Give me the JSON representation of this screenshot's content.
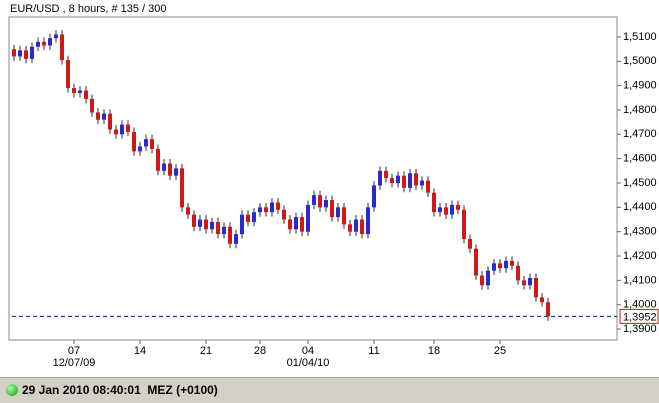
{
  "chart_data": {
    "type": "candlestick",
    "title": "EUR/USD , 8 hours, # 135 / 300",
    "categories": [
      null,
      null,
      null,
      null,
      null,
      null,
      null,
      null,
      null,
      null,
      "07",
      null,
      null,
      null,
      null,
      null,
      null,
      null,
      null,
      null,
      null,
      "14",
      null,
      null,
      null,
      null,
      null,
      null,
      null,
      null,
      null,
      null,
      "21",
      null,
      null,
      null,
      null,
      null,
      null,
      null,
      null,
      "28",
      null,
      null,
      null,
      null,
      null,
      null,
      null,
      "04",
      null,
      null,
      null,
      null,
      null,
      null,
      null,
      null,
      null,
      null,
      "11",
      null,
      null,
      null,
      null,
      null,
      null,
      null,
      null,
      null,
      "18",
      null,
      null,
      null,
      null,
      null,
      null,
      null,
      null,
      null,
      null,
      "25",
      null,
      null,
      null,
      null,
      null,
      null,
      null,
      null
    ],
    "categories2": [
      null,
      null,
      null,
      null,
      null,
      null,
      null,
      null,
      null,
      null,
      "12/07/09",
      null,
      null,
      null,
      null,
      null,
      null,
      null,
      null,
      null,
      null,
      null,
      null,
      null,
      null,
      null,
      null,
      null,
      null,
      null,
      null,
      null,
      null,
      null,
      null,
      null,
      null,
      null,
      null,
      null,
      null,
      null,
      null,
      null,
      null,
      null,
      null,
      null,
      null,
      "01/04/10",
      null,
      null,
      null,
      null,
      null,
      null,
      null,
      null,
      null,
      null,
      null,
      null,
      null,
      null,
      null,
      null,
      null,
      null,
      null,
      null,
      null,
      null,
      null,
      null,
      null,
      null,
      null,
      null,
      null,
      null,
      null,
      null,
      null,
      null,
      null,
      null,
      null,
      null,
      null,
      null
    ],
    "open": [
      1.505,
      1.502,
      1.5045,
      1.501,
      1.506,
      1.508,
      1.5065,
      1.5095,
      1.511,
      1.5005,
      1.489,
      1.487,
      1.488,
      1.4845,
      1.479,
      1.476,
      1.4785,
      1.472,
      1.47,
      1.474,
      1.471,
      1.463,
      1.465,
      1.468,
      1.464,
      1.455,
      1.458,
      1.453,
      1.456,
      1.44,
      1.437,
      1.432,
      1.435,
      1.431,
      1.434,
      1.429,
      1.432,
      1.425,
      1.429,
      1.437,
      1.434,
      1.438,
      1.44,
      1.438,
      1.442,
      1.439,
      1.435,
      1.431,
      1.436,
      1.43,
      1.441,
      1.445,
      1.44,
      1.443,
      1.436,
      1.44,
      1.433,
      1.43,
      1.435,
      1.429,
      1.44,
      1.449,
      1.455,
      1.452,
      1.45,
      1.453,
      1.448,
      1.454,
      1.449,
      1.451,
      1.446,
      1.438,
      1.44,
      1.437,
      1.441,
      1.439,
      1.427,
      1.423,
      1.412,
      1.408,
      1.414,
      1.417,
      1.415,
      1.418,
      1.416,
      1.41,
      1.408,
      1.411,
      1.403,
      1.401
    ],
    "high": [
      1.5068,
      1.5063,
      1.5063,
      1.5078,
      1.5098,
      1.5098,
      1.5113,
      1.5128,
      1.5128,
      1.5023,
      1.4908,
      1.4898,
      1.4898,
      1.4863,
      1.4808,
      1.4803,
      1.4803,
      1.4738,
      1.4758,
      1.4758,
      1.4728,
      1.4668,
      1.4698,
      1.4698,
      1.4658,
      1.4598,
      1.4598,
      1.4578,
      1.4578,
      1.4418,
      1.4388,
      1.4368,
      1.4368,
      1.4358,
      1.4358,
      1.4338,
      1.4338,
      1.4308,
      1.4388,
      1.4388,
      1.4398,
      1.4418,
      1.4418,
      1.4438,
      1.4438,
      1.4408,
      1.4368,
      1.4378,
      1.4378,
      1.4428,
      1.4468,
      1.4468,
      1.4448,
      1.4448,
      1.4418,
      1.4418,
      1.4348,
      1.4368,
      1.4368,
      1.4418,
      1.4508,
      1.4568,
      1.4568,
      1.4538,
      1.4548,
      1.4548,
      1.4558,
      1.4558,
      1.4528,
      1.4528,
      1.4478,
      1.4418,
      1.4418,
      1.4428,
      1.4428,
      1.4408,
      1.4288,
      1.4248,
      1.4138,
      1.4158,
      1.4188,
      1.4188,
      1.4198,
      1.4198,
      1.4178,
      1.4118,
      1.4128,
      1.4128,
      1.4048,
      1.4028
    ],
    "low": [
      1.5002,
      1.5002,
      1.4992,
      1.4992,
      1.5042,
      1.5047,
      1.5047,
      1.5077,
      1.4987,
      1.4872,
      1.4852,
      1.4852,
      1.4827,
      1.4772,
      1.4742,
      1.4742,
      1.4702,
      1.4682,
      1.4682,
      1.4692,
      1.4612,
      1.4612,
      1.4632,
      1.4622,
      1.4532,
      1.4532,
      1.4512,
      1.4512,
      1.4382,
      1.4352,
      1.4302,
      1.4302,
      1.4292,
      1.4292,
      1.4272,
      1.4272,
      1.4232,
      1.4232,
      1.4272,
      1.4322,
      1.4322,
      1.4362,
      1.4362,
      1.4362,
      1.4372,
      1.4332,
      1.4292,
      1.4292,
      1.4282,
      1.4282,
      1.4392,
      1.4382,
      1.4382,
      1.4342,
      1.4342,
      1.4312,
      1.4282,
      1.4282,
      1.4272,
      1.4272,
      1.4382,
      1.4472,
      1.4502,
      1.4482,
      1.4482,
      1.4462,
      1.4462,
      1.4472,
      1.4472,
      1.4442,
      1.4362,
      1.4362,
      1.4352,
      1.4352,
      1.4372,
      1.4252,
      1.4212,
      1.4102,
      1.4062,
      1.4062,
      1.4122,
      1.4132,
      1.4132,
      1.4142,
      1.4082,
      1.4062,
      1.4062,
      1.4012,
      1.3992,
      1.3934
    ],
    "close": [
      1.502,
      1.5045,
      1.501,
      1.506,
      1.508,
      1.5065,
      1.5095,
      1.511,
      1.5005,
      1.489,
      1.487,
      1.488,
      1.4845,
      1.479,
      1.476,
      1.4785,
      1.472,
      1.47,
      1.474,
      1.471,
      1.463,
      1.465,
      1.468,
      1.464,
      1.455,
      1.458,
      1.453,
      1.456,
      1.44,
      1.437,
      1.432,
      1.435,
      1.431,
      1.434,
      1.429,
      1.432,
      1.425,
      1.429,
      1.437,
      1.434,
      1.438,
      1.44,
      1.438,
      1.442,
      1.439,
      1.435,
      1.431,
      1.436,
      1.43,
      1.441,
      1.445,
      1.44,
      1.443,
      1.436,
      1.44,
      1.433,
      1.43,
      1.435,
      1.429,
      1.44,
      1.449,
      1.455,
      1.452,
      1.45,
      1.453,
      1.448,
      1.454,
      1.449,
      1.451,
      1.446,
      1.438,
      1.44,
      1.437,
      1.441,
      1.439,
      1.427,
      1.423,
      1.412,
      1.408,
      1.414,
      1.417,
      1.415,
      1.418,
      1.416,
      1.41,
      1.408,
      1.411,
      1.403,
      1.401,
      1.3952
    ],
    "up_color": "#2a2ad0",
    "down_color": "#d01818",
    "wick_color": "#303030",
    "ylim": [
      1.3855,
      1.5182
    ],
    "yticks": [
      {
        "value": 1.39,
        "label": "1,3900"
      },
      {
        "value": 1.4,
        "label": "1,4000"
      },
      {
        "value": 1.41,
        "label": "1,4100"
      },
      {
        "value": 1.42,
        "label": "1,4200"
      },
      {
        "value": 1.43,
        "label": "1,4300"
      },
      {
        "value": 1.44,
        "label": "1,4400"
      },
      {
        "value": 1.45,
        "label": "1,4500"
      },
      {
        "value": 1.46,
        "label": "1,4600"
      },
      {
        "value": 1.47,
        "label": "1,4700"
      },
      {
        "value": 1.48,
        "label": "1,4800"
      },
      {
        "value": 1.49,
        "label": "1,4900"
      },
      {
        "value": 1.5,
        "label": "1,5000"
      },
      {
        "value": 1.51,
        "label": "1,5100"
      }
    ],
    "current_price": {
      "value": 1.3952,
      "label": "1,3952"
    }
  },
  "status_bar": {
    "text": "29 Jan 2010 08:40:01  MEZ (+0100)"
  }
}
